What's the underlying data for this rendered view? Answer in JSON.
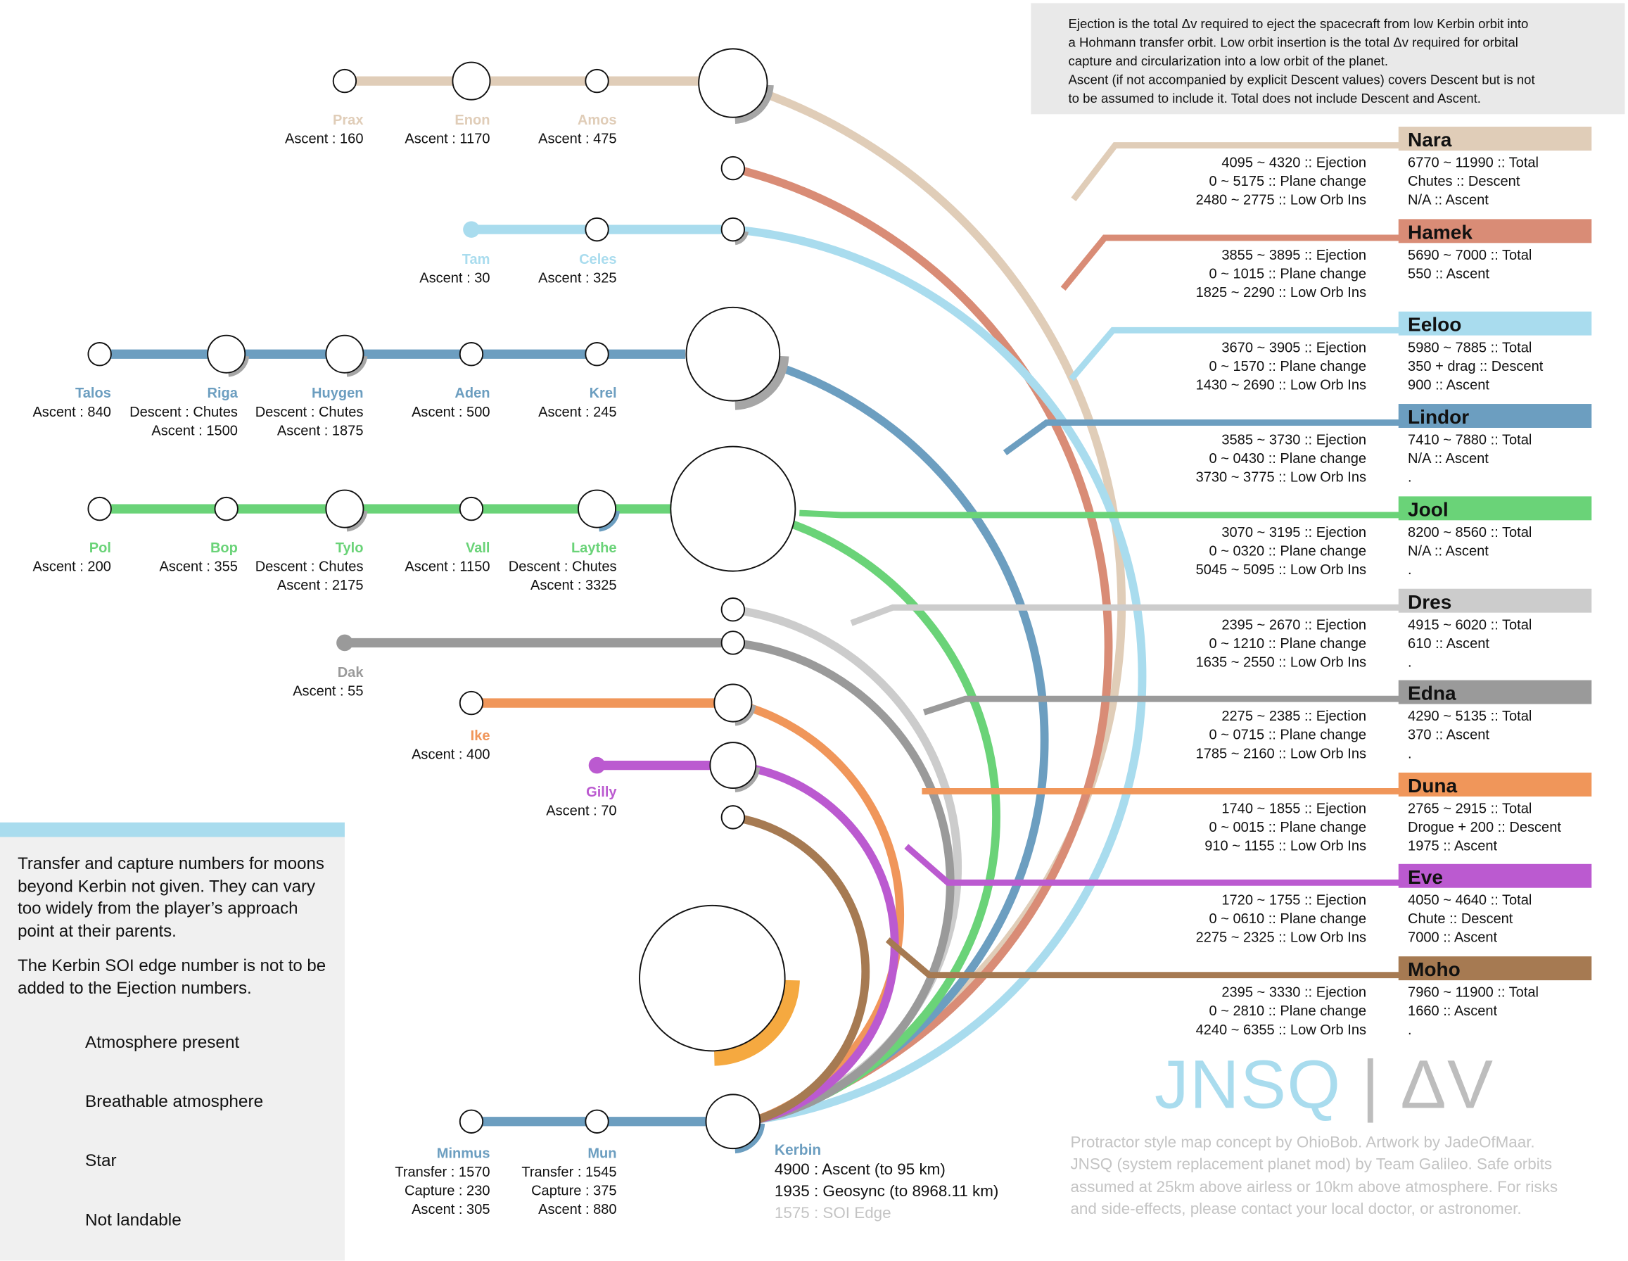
{
  "note": {
    "lines": [
      "Ejection is the total Δv required to eject the spacecraft from low Kerbin orbit into",
      "a Hohmann transfer orbit.  Low orbit insertion is the total Δv required for orbital",
      "capture and circularization into a low orbit of the planet.",
      "Ascent (if not accompanied by explicit Descent values) covers Descent but is not",
      "to be assumed to include it. Total does not include Descent and Ascent."
    ]
  },
  "planets": [
    {
      "name": "Nara",
      "color": "#e0cdb8",
      "left": [
        "4095 ~ 4320 :: Ejection",
        "0 ~ 5175 :: Plane change",
        "2480 ~ 2775 ::  Low Orb Ins"
      ],
      "right": [
        "6770 ~ 11990 :: Total",
        "Chutes :: Descent",
        "N/A   :: Ascent"
      ]
    },
    {
      "name": "Hamek",
      "color": "#d98c76",
      "left": [
        "3855 ~ 3895 :: Ejection",
        "0 ~ 1015 :: Plane change",
        "1825 ~ 2290 :: Low Orb Ins"
      ],
      "right": [
        "5690 ~ 7000 :: Total",
        "550 :: Ascent",
        ""
      ]
    },
    {
      "name": "Eeloo",
      "color": "#a9dcee",
      "left": [
        "3670 ~ 3905 :: Ejection",
        "0 ~ 1570 :: Plane change",
        "1430 ~ 2690 :: Low Orb Ins"
      ],
      "right": [
        "5980 ~ 7885 :: Total",
        "350 + drag :: Descent",
        "900 :: Ascent"
      ]
    },
    {
      "name": "Lindor",
      "color": "#6c9ec0",
      "left": [
        "3585 ~ 3730 :: Ejection",
        "0 ~ 0430 :: Plane change",
        "3730 ~ 3775 :: Low Orb Ins"
      ],
      "right": [
        "7410 ~ 7880 :: Total",
        "N/A   :: Ascent",
        "."
      ]
    },
    {
      "name": "Jool",
      "color": "#6ad378",
      "left": [
        "3070 ~ 3195 :: Ejection",
        "0 ~ 0320 :: Plane change",
        "5045 ~ 5095 :: Low Orb Ins"
      ],
      "right": [
        "8200 ~ 8560 :: Total",
        "N/A   :: Ascent",
        "."
      ]
    },
    {
      "name": "Dres",
      "color": "#cccccc",
      "left": [
        "2395 ~ 2670 :: Ejection",
        "0 ~ 1210 :: Plane change",
        "1635 ~ 2550 :: Low Orb Ins"
      ],
      "right": [
        "4915 ~ 6020 :: Total",
        "610 :: Ascent",
        "."
      ]
    },
    {
      "name": "Edna",
      "color": "#9a9a9a",
      "left": [
        "2275 ~ 2385 :: Ejection",
        "0 ~ 0715 :: Plane change",
        "1785 ~ 2160 :: Low Orb Ins"
      ],
      "right": [
        "4290 ~ 5135 :: Total",
        "370 :: Ascent",
        "."
      ]
    },
    {
      "name": "Duna",
      "color": "#f0965a",
      "left": [
        "1740 ~ 1855 :: Ejection",
        "0 ~ 0015 :: Plane change",
        "910 ~ 1155 :: Low Orb Ins"
      ],
      "right": [
        "2765 ~ 2915 :: Total",
        "Drogue + 200 :: Descent",
        "1975 :: Ascent"
      ]
    },
    {
      "name": "Eve",
      "color": "#bb5ad0",
      "left": [
        "1720 ~ 1755 :: Ejection",
        "0 ~ 0610 :: Plane change",
        "2275 ~ 2325 :: Low Orb Ins"
      ],
      "right": [
        "4050 ~ 4640 :: Total",
        "Chute :: Descent",
        "7000 :: Ascent"
      ]
    },
    {
      "name": "Moho",
      "color": "#a67a52",
      "left": [
        "2395 ~ 3330 :: Ejection",
        "0 ~ 2810 :: Plane change",
        "4240 ~ 6355 :: Low Orb Ins"
      ],
      "right": [
        "7960 ~ 11900 :: Total",
        "1660 :: Ascent",
        "."
      ]
    }
  ],
  "moons": [
    {
      "name": "Prax",
      "color": "#e0cdb8",
      "lines": [
        "Ascent : 160"
      ]
    },
    {
      "name": "Enon",
      "color": "#e0cdb8",
      "lines": [
        "Ascent : 1170"
      ]
    },
    {
      "name": "Amos",
      "color": "#e0cdb8",
      "lines": [
        "Ascent : 475"
      ]
    },
    {
      "name": "Tam",
      "color": "#a9dcee",
      "lines": [
        "Ascent : 30"
      ]
    },
    {
      "name": "Celes",
      "color": "#a9dcee",
      "lines": [
        "Ascent : 325"
      ]
    },
    {
      "name": "Talos",
      "color": "#6c9ec0",
      "lines": [
        "Ascent : 840"
      ]
    },
    {
      "name": "Riga",
      "color": "#6c9ec0",
      "lines": [
        "Descent : Chutes",
        "Ascent :    1500"
      ]
    },
    {
      "name": "Huygen",
      "color": "#6c9ec0",
      "lines": [
        "Descent : Chutes",
        "Ascent :    1875"
      ]
    },
    {
      "name": "Aden",
      "color": "#6c9ec0",
      "lines": [
        "Ascent : 500"
      ]
    },
    {
      "name": "Krel",
      "color": "#6c9ec0",
      "lines": [
        "Ascent : 245"
      ]
    },
    {
      "name": "Pol",
      "color": "#6ad378",
      "lines": [
        "Ascent : 200"
      ]
    },
    {
      "name": "Bop",
      "color": "#6ad378",
      "lines": [
        "Ascent : 355"
      ]
    },
    {
      "name": "Tylo",
      "color": "#6ad378",
      "lines": [
        "Descent : Chutes",
        "Ascent :    2175"
      ]
    },
    {
      "name": "Vall",
      "color": "#6ad378",
      "lines": [
        "Ascent : 1150"
      ]
    },
    {
      "name": "Laythe",
      "color": "#6ad378",
      "lines": [
        "Descent : Chutes",
        "Ascent :    3325"
      ]
    },
    {
      "name": "Dak",
      "color": "#9a9a9a",
      "lines": [
        "Ascent :   55"
      ]
    },
    {
      "name": "Ike",
      "color": "#f0965a",
      "lines": [
        "Ascent :  400"
      ]
    },
    {
      "name": "Gilly",
      "color": "#bb5ad0",
      "lines": [
        "Ascent :   70"
      ]
    },
    {
      "name": "Minmus",
      "color": "#6c9ec0",
      "lines": [
        "Transfer : 1570",
        "Capture :    230",
        "Ascent :   305"
      ]
    },
    {
      "name": "Mun",
      "color": "#6c9ec0",
      "lines": [
        "Transfer : 1545",
        "Capture :    375",
        "Ascent :   880"
      ]
    }
  ],
  "kerbin": {
    "name": "Kerbin",
    "ascent": "4900 : Ascent (to 95 km)",
    "geosync": "1935 : Geosync (to 8968.11 km)",
    "soi": "1575 : SOI Edge"
  },
  "legend": {
    "text1": "Transfer and capture numbers for moons beyond Kerbin not given. They can vary too widely from the player’s approach point at their parents.",
    "text2": "The Kerbin SOI edge number is not to be added to the Ejection numbers.",
    "items": [
      "Atmosphere present",
      "Breathable atmosphere",
      "Star",
      "Not landable"
    ]
  },
  "brand": {
    "name": "JNSQ",
    "sep": " | ",
    "dv": "ΔV"
  },
  "credits": "Protractor style map concept by OhioBob. Artwork by JadeOfMaar. JNSQ (system replacement planet mod) by Team Galileo. Safe orbits assumed at 25km above airless or 10km above atmosphere. For risks and side-effects, please contact your local doctor, or astronomer.",
  "colors": {
    "atmosphere": "#a6a6a6",
    "breathable": "#6c9ec0",
    "star": "#f5a940",
    "legend_band": "#a9dcee"
  }
}
